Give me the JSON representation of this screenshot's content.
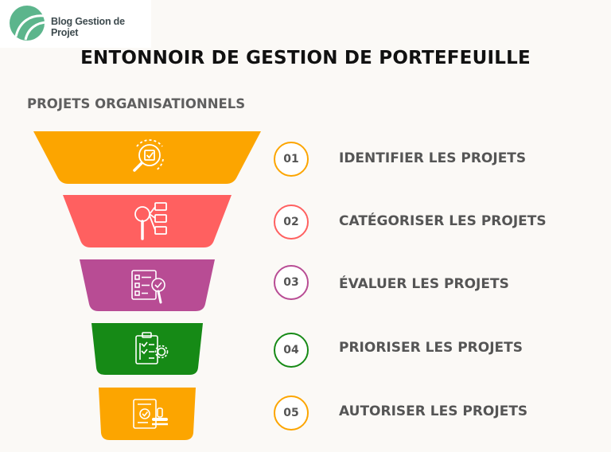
{
  "brand": {
    "name": "Blog Gestion de Projet",
    "logo_color": "#5cb58c",
    "logo_icon": "leaf-logo-icon"
  },
  "title": "ENTONNOIR DE GESTION DE PORTEFEUILLE",
  "subtitle": "PROJETS ORGANISATIONNELS",
  "steps": [
    {
      "number": "01",
      "label": "IDENTIFIER LES PROJETS",
      "color": "#fca500",
      "icon": "magnifier-check-icon"
    },
    {
      "number": "02",
      "label": "CATÉGORISER LES PROJETS",
      "color": "#ff6060",
      "icon": "magnifier-list-icon"
    },
    {
      "number": "03",
      "label": "ÉVALUER LES PROJETS",
      "color": "#b84c94",
      "icon": "checklist-magnifier-icon"
    },
    {
      "number": "04",
      "label": "PRIORISER LES PROJETS",
      "color": "#168a16",
      "icon": "clipboard-gear-icon"
    },
    {
      "number": "05",
      "label": "AUTORISER LES PROJETS",
      "color": "#fca500",
      "icon": "document-stamp-icon"
    }
  ]
}
